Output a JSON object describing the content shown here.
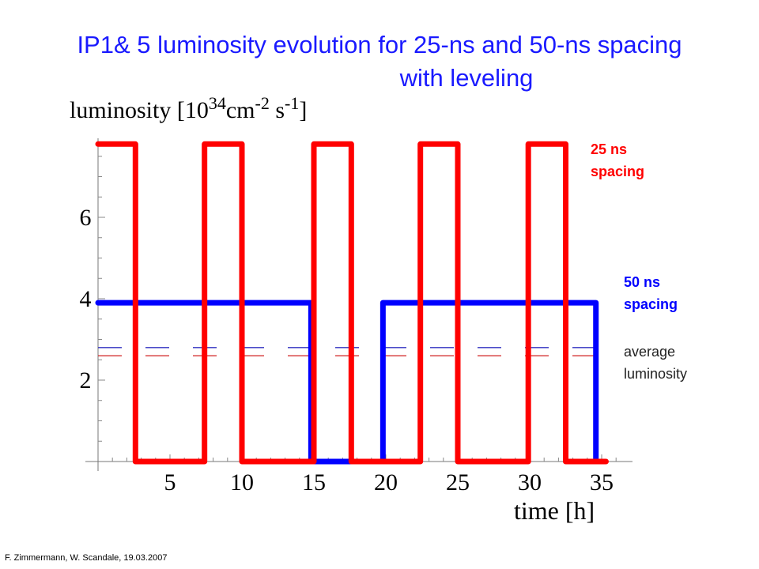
{
  "title": {
    "line1": "IP1& 5 luminosity evolution for 25-ns and 50-ns spacing",
    "line2": "with leveling"
  },
  "footer": "F.  Zimmermann, W. Scandale, 19.03.2007",
  "legend": {
    "spacing_25": "25 ns\nspacing",
    "spacing_50": "50 ns\nspacing",
    "average": "average\nluminosity"
  },
  "colors": {
    "title": "#1a1aff",
    "series_25": "#ff0000",
    "series_50": "#0000ff",
    "avg_25": "#d02020",
    "avg_50": "#3030c0"
  },
  "chart_data": {
    "type": "line",
    "title": "IP1& 5 luminosity evolution for 25-ns and 50-ns spacing with leveling",
    "ylabel": "luminosity [10^34 cm^-2 s^-1]",
    "ylabel_parts": {
      "base": "luminosity [10",
      "exp1": "34",
      "mid": "cm",
      "exp2": "-2",
      "mid2": " s",
      "exp3": "-1",
      "end": "]"
    },
    "xlabel": "time [h]",
    "xlim": [
      0,
      37
    ],
    "ylim": [
      0,
      8
    ],
    "x_ticks": [
      5,
      10,
      15,
      20,
      25,
      30,
      35
    ],
    "y_ticks": [
      2,
      4,
      6
    ],
    "grid": false,
    "series": [
      {
        "name": "25 ns spacing",
        "color": "#ff0000",
        "x": [
          0,
          2.6,
          2.6,
          7.4,
          7.4,
          10,
          10,
          15,
          15,
          17.6,
          17.6,
          22.4,
          22.4,
          25,
          25,
          29.9,
          29.9,
          32.5,
          32.5,
          35.3
        ],
        "y": [
          7.8,
          7.8,
          0,
          0,
          7.8,
          7.8,
          0,
          0,
          7.8,
          7.8,
          0,
          0,
          7.8,
          7.8,
          0,
          0,
          7.8,
          7.8,
          0,
          0
        ]
      },
      {
        "name": "50 ns spacing",
        "color": "#0000ff",
        "x": [
          0,
          14.8,
          14.8,
          19.8,
          19.8,
          34.6,
          34.6
        ],
        "y": [
          3.9,
          3.9,
          0,
          0,
          3.9,
          3.9,
          0
        ]
      },
      {
        "name": "average luminosity",
        "style": "dashed",
        "color": "#3030c0",
        "x": [
          0,
          34.6
        ],
        "y": [
          2.8,
          2.8
        ]
      },
      {
        "name": "average luminosity",
        "style": "dashed",
        "color": "#d02020",
        "x": [
          0,
          34.6
        ],
        "y": [
          2.6,
          2.6
        ]
      }
    ]
  }
}
